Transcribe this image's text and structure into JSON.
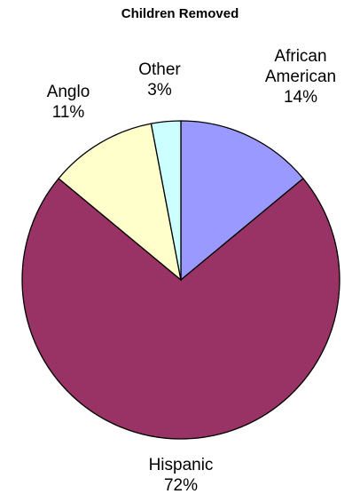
{
  "chart_data": {
    "type": "pie",
    "title": "Children Removed",
    "slices": [
      {
        "name": "African American",
        "label_lines": [
          "African",
          "American"
        ],
        "value": 14,
        "value_label": "14%",
        "color": "#9999ff"
      },
      {
        "name": "Hispanic",
        "label_lines": [
          "Hispanic"
        ],
        "value": 72,
        "value_label": "72%",
        "color": "#993366"
      },
      {
        "name": "Anglo",
        "label_lines": [
          "Anglo"
        ],
        "value": 11,
        "value_label": "11%",
        "color": "#ffffcc"
      },
      {
        "name": "Other",
        "label_lines": [
          "Other"
        ],
        "value": 3,
        "value_label": "3%",
        "color": "#ccffff"
      }
    ],
    "start": "12 o'clock",
    "direction": "clockwise",
    "legend": "none"
  }
}
